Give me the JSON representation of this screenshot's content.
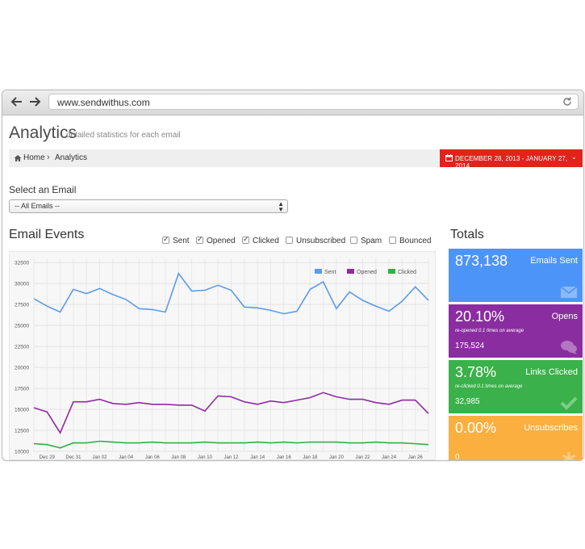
{
  "browser": {
    "url": "www.sendwithus.com"
  },
  "header": {
    "title": "Analytics",
    "subtitle": "detailed statistics for each email"
  },
  "breadcrumb": {
    "home": "Home",
    "separator": "›",
    "current": "Analytics"
  },
  "date_range": {
    "label": "DECEMBER 28, 2013 - JANUARY 27, 2014",
    "color": "#e2231a"
  },
  "email_select": {
    "label": "Select an Email",
    "value": "-- All Emails --"
  },
  "events": {
    "title": "Email Events",
    "filters": [
      {
        "label": "Sent",
        "checked": true
      },
      {
        "label": "Opened",
        "checked": true
      },
      {
        "label": "Clicked",
        "checked": true
      },
      {
        "label": "Unsubscribed",
        "checked": false
      },
      {
        "label": "Spam",
        "checked": false
      },
      {
        "label": "Bounced",
        "checked": false
      }
    ]
  },
  "totals": {
    "title": "Totals",
    "tiles": [
      {
        "value": "873,138",
        "label": "Emails Sent",
        "sub": "",
        "count": "",
        "color": "#4d94f8",
        "icon": "envelope-icon"
      },
      {
        "value": "20.10%",
        "label": "Opens",
        "sub": "re-opened 0.1 times on average",
        "count": "175,524",
        "color": "#8a2da0",
        "icon": "chat-bubble-icon"
      },
      {
        "value": "3.78%",
        "label": "Links Clicked",
        "sub": "re-clicked 0.1 times on average",
        "count": "32,985",
        "color": "#3ab14a",
        "icon": "checkmark-icon"
      },
      {
        "value": "0.00%",
        "label": "Unsubscribes",
        "sub": "",
        "count": "0",
        "color": "#fbaf3f",
        "icon": "asterisk-icon"
      }
    ]
  },
  "chart_data": {
    "type": "line",
    "x": [
      "Dec 28",
      "Dec 29",
      "Dec 30",
      "Dec 31",
      "Jan 01",
      "Jan 02",
      "Jan 03",
      "Jan 04",
      "Jan 05",
      "Jan 06",
      "Jan 07",
      "Jan 08",
      "Jan 09",
      "Jan 10",
      "Jan 11",
      "Jan 12",
      "Jan 13",
      "Jan 14",
      "Jan 15",
      "Jan 16",
      "Jan 17",
      "Jan 18",
      "Jan 19",
      "Jan 20",
      "Jan 21",
      "Jan 22",
      "Jan 23",
      "Jan 24",
      "Jan 25",
      "Jan 26",
      "Jan 27"
    ],
    "x_tick_labels": [
      "Dec 29",
      "Dec 31",
      "Jan 02",
      "Jan 04",
      "Jan 06",
      "Jan 08",
      "Jan 10",
      "Jan 12",
      "Jan 14",
      "Jan 16",
      "Jan 18",
      "Jan 20",
      "Jan 22",
      "Jan 24",
      "Jan 26"
    ],
    "y_ticks": [
      10000,
      12500,
      15000,
      17500,
      20000,
      22500,
      25000,
      27500,
      30000,
      32500
    ],
    "ylim": [
      10000,
      33000
    ],
    "legend": "top-right",
    "grid": true,
    "series": [
      {
        "name": "Sent",
        "color": "#5b9bea",
        "values": [
          28200,
          27300,
          26600,
          29300,
          28800,
          29400,
          28700,
          28100,
          27000,
          26900,
          26600,
          31200,
          29100,
          29200,
          29800,
          29200,
          27200,
          27100,
          26800,
          26400,
          26700,
          29300,
          30200,
          27000,
          29000,
          28000,
          27300,
          26700,
          27900,
          29600,
          28000
        ]
      },
      {
        "name": "Opened",
        "color": "#8e2ca0",
        "values": [
          15200,
          14700,
          12200,
          15900,
          15900,
          16200,
          15700,
          15600,
          15800,
          15600,
          15600,
          15500,
          15500,
          14800,
          16600,
          16500,
          15900,
          15600,
          16000,
          15800,
          16100,
          16400,
          17000,
          16500,
          16200,
          16200,
          15800,
          15600,
          16100,
          16100,
          14500
        ]
      },
      {
        "name": "Clicked",
        "color": "#33b045",
        "values": [
          10900,
          10800,
          10400,
          11000,
          11000,
          11200,
          11100,
          11000,
          11000,
          11100,
          11000,
          11000,
          11000,
          11100,
          11000,
          11000,
          11000,
          11100,
          11000,
          11100,
          11000,
          11100,
          11100,
          11100,
          11000,
          11000,
          11100,
          11000,
          11000,
          10900,
          10800
        ]
      }
    ]
  }
}
